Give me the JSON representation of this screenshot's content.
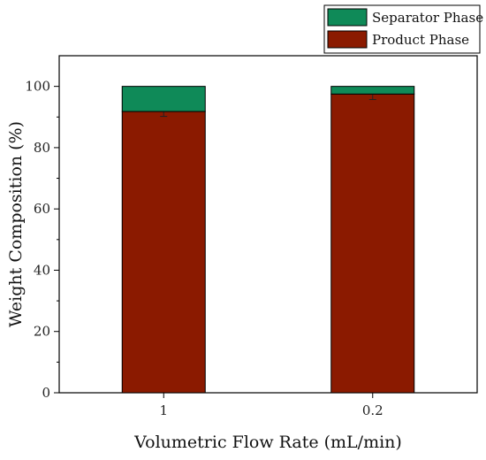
{
  "chart_data": {
    "type": "bar",
    "stacked": true,
    "categories": [
      "1",
      "0.2"
    ],
    "series": [
      {
        "name": "Product Phase",
        "values": [
          91.8,
          97.5
        ],
        "error": [
          1.6,
          1.8
        ],
        "color": "#8b1a00"
      },
      {
        "name": "Separator Phase",
        "values": [
          8.2,
          2.5
        ],
        "color": "#0f8a58"
      }
    ],
    "xlabel": "Volumetric Flow Rate (mL/min)",
    "ylabel": "Weight Composition (%)",
    "ylim": [
      0,
      110
    ],
    "yticks": [
      0,
      20,
      40,
      60,
      80,
      100
    ],
    "grid": false,
    "legend_position": "top-right-outside"
  }
}
